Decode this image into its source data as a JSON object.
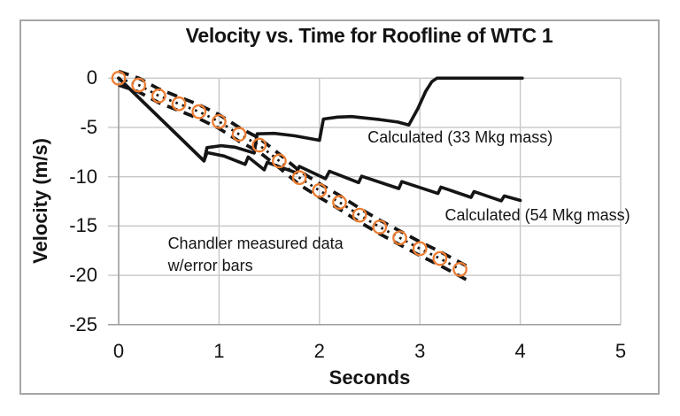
{
  "figure": {
    "background": "#ffffff",
    "border_color": "#a6a6a6"
  },
  "chart_data": {
    "type": "line",
    "title": "Velocity vs. Time for Roofline of WTC 1",
    "xlabel": "Seconds",
    "ylabel": "Velocity (m/s)",
    "xlim": [
      0,
      5
    ],
    "ylim": [
      -25,
      0
    ],
    "x_ticks": [
      "0",
      "1",
      "2",
      "3",
      "4",
      "5"
    ],
    "x_tick_values": [
      0,
      1,
      2,
      3,
      4,
      5
    ],
    "y_ticks": [
      "0",
      "-5",
      "-10",
      "-15",
      "-20",
      "-25"
    ],
    "y_tick_values": [
      0,
      -5,
      -10,
      -15,
      -20,
      -25
    ],
    "grid": true,
    "grid_color": "#c6c6c6",
    "axis_color": "#9e9e9e",
    "legend_position": "inline-annotations",
    "series": [
      {
        "name": "Calculated (33 Mkg mass)",
        "style": "solid",
        "color": "#151515",
        "points": [
          [
            0,
            0
          ],
          [
            0.85,
            -8.4
          ],
          [
            0.88,
            -7.05
          ],
          [
            1.02,
            -6.85
          ],
          [
            1.16,
            -7.0
          ],
          [
            1.35,
            -7.6
          ],
          [
            1.38,
            -5.65
          ],
          [
            1.55,
            -5.6
          ],
          [
            1.75,
            -5.85
          ],
          [
            2.0,
            -6.3
          ],
          [
            2.04,
            -4.15
          ],
          [
            2.18,
            -3.95
          ],
          [
            2.32,
            -3.9
          ],
          [
            2.6,
            -4.2
          ],
          [
            2.78,
            -4.45
          ],
          [
            2.89,
            -4.75
          ],
          [
            2.98,
            -3.1
          ],
          [
            3.06,
            -1.3
          ],
          [
            3.12,
            -0.35
          ],
          [
            3.17,
            0
          ],
          [
            4.02,
            0
          ]
        ]
      },
      {
        "name": "Calculated (54 Mkg mass)",
        "style": "solid",
        "color": "#151515",
        "points": [
          [
            0,
            0
          ],
          [
            0.85,
            -8.4
          ],
          [
            0.88,
            -7.55
          ],
          [
            1.05,
            -7.9
          ],
          [
            1.26,
            -8.75
          ],
          [
            1.29,
            -8.0
          ],
          [
            1.45,
            -9.3
          ],
          [
            1.48,
            -8.55
          ],
          [
            1.77,
            -9.6
          ],
          [
            1.8,
            -8.95
          ],
          [
            2.06,
            -10.2
          ],
          [
            2.1,
            -9.45
          ],
          [
            2.39,
            -10.6
          ],
          [
            2.42,
            -9.95
          ],
          [
            2.79,
            -11.2
          ],
          [
            2.82,
            -10.5
          ],
          [
            3.18,
            -11.7
          ],
          [
            3.21,
            -11.05
          ],
          [
            3.51,
            -12.1
          ],
          [
            3.54,
            -11.5
          ],
          [
            3.81,
            -12.45
          ],
          [
            3.84,
            -11.95
          ],
          [
            4.0,
            -12.4
          ]
        ]
      },
      {
        "name": "Chandler measured data w/error bars",
        "style": "dotted-with-markers",
        "marker": "open-circle",
        "marker_color": "#ED7D31",
        "line_color": "#151515",
        "error_bar_offset": 0.7,
        "error_bar_style": "dashed",
        "x": [
          0,
          0.2,
          0.4,
          0.6,
          0.8,
          1.0,
          1.2,
          1.4,
          1.6,
          1.8,
          2.0,
          2.2,
          2.4,
          2.6,
          2.8,
          3.0,
          3.2,
          3.4
        ],
        "v": [
          0,
          -0.7,
          -1.8,
          -2.6,
          -3.4,
          -4.4,
          -5.7,
          -6.8,
          -8.4,
          -10.1,
          -11.4,
          -12.6,
          -13.9,
          -15.1,
          -16.2,
          -17.3,
          -18.3,
          -19.4
        ]
      }
    ],
    "annotations": [
      {
        "id": "calc33",
        "lines": [
          "Calculated (33 Mkg mass)"
        ],
        "t": 2.48,
        "v": -4.95
      },
      {
        "id": "calc54",
        "lines": [
          "Calculated (54 Mkg mass)"
        ],
        "t": 3.25,
        "v": -12.85
      },
      {
        "id": "chandler",
        "lines": [
          "Chandler measured data",
          "w/error bars"
        ],
        "t": 0.49,
        "v": -15.65
      }
    ]
  }
}
